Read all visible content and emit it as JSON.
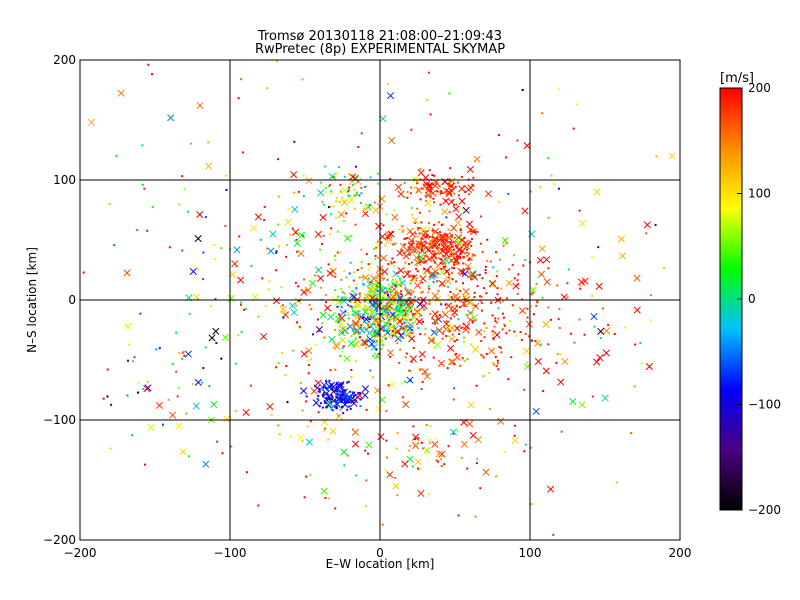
{
  "chart_data": {
    "type": "scatter",
    "title": "Tromsø 20130118 21:08:00–21:09:43",
    "subtitle": "RwPretec (8p) EXPERIMENTAL SKYMAP",
    "xlabel": "E–W location [km]",
    "ylabel": "N–S location [km]",
    "xlim": [
      -200,
      200
    ],
    "ylim": [
      -200,
      200
    ],
    "xticks": [
      -200,
      -100,
      0,
      100,
      200
    ],
    "yticks": [
      -200,
      -100,
      0,
      100,
      200
    ],
    "xtick_labels": [
      "−200",
      "−100",
      "0",
      "100",
      "200"
    ],
    "ytick_labels": [
      "−200",
      "−100",
      "0",
      "100",
      "200"
    ],
    "grid": true,
    "marker_types": [
      "dot",
      "cross"
    ],
    "colorbar": {
      "label": "[m/s]",
      "range": [
        -200,
        200
      ],
      "ticks": [
        200,
        100,
        0,
        -100,
        -200
      ],
      "tick_labels": [
        "200",
        "100",
        "0",
        "−100",
        "−200"
      ],
      "colors": [
        "#000000",
        "#4b0082",
        "#0000ff",
        "#00c0ff",
        "#00ff00",
        "#ffff00",
        "#ff8c00",
        "#ff0000"
      ]
    },
    "clusters": [
      {
        "x": 0,
        "y": -10,
        "sx": 14,
        "sy": 14,
        "v": 30,
        "vs": 70,
        "n": 420
      },
      {
        "x": 38,
        "y": 45,
        "sx": 14,
        "sy": 11,
        "v": 180,
        "vs": 25,
        "n": 260
      },
      {
        "x": 40,
        "y": 92,
        "sx": 12,
        "sy": 7,
        "v": 185,
        "vs": 25,
        "n": 90
      },
      {
        "x": 55,
        "y": -10,
        "sx": 40,
        "sy": 30,
        "v": 180,
        "vs": 35,
        "n": 330
      },
      {
        "x": -28,
        "y": -80,
        "sx": 8,
        "sy": 6,
        "v": -90,
        "vs": 20,
        "n": 150
      },
      {
        "x": 5,
        "y": 20,
        "sx": 45,
        "sy": 30,
        "v": 140,
        "vs": 70,
        "n": 180
      },
      {
        "x": -25,
        "y": 90,
        "sx": 12,
        "sy": 12,
        "v": 60,
        "vs": 80,
        "n": 60
      },
      {
        "x": 0,
        "y": 0,
        "sx": 95,
        "sy": 90,
        "v": 110,
        "vs": 110,
        "n": 380
      },
      {
        "x": -140,
        "y": -80,
        "sx": 30,
        "sy": 25,
        "v": -10,
        "vs": 150,
        "n": 50
      },
      {
        "x": -120,
        "y": 50,
        "sx": 40,
        "sy": 40,
        "v": 20,
        "vs": 140,
        "n": 40
      },
      {
        "x": 20,
        "y": -120,
        "sx": 35,
        "sy": 20,
        "v": 150,
        "vs": 60,
        "n": 80
      }
    ]
  }
}
